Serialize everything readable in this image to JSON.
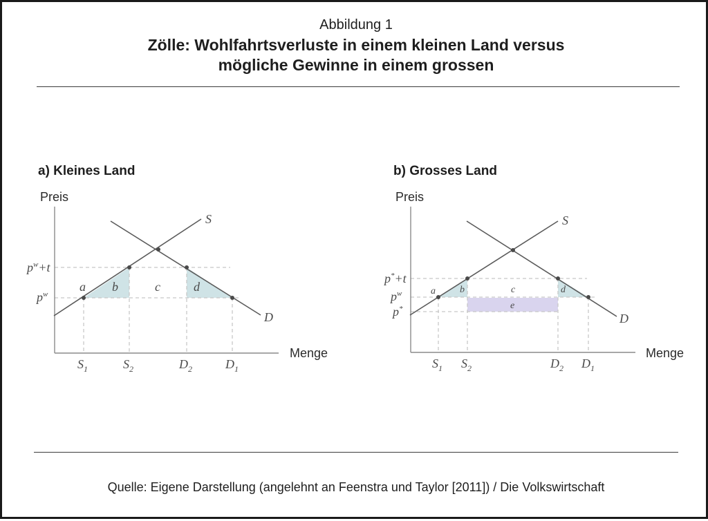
{
  "header": {
    "figure_label": "Abbildung 1",
    "title_line1": "Zölle: Wohlfahrtsverluste in einem kleinen Land versus",
    "title_line2": "mögliche Gewinne in einem grossen"
  },
  "colors": {
    "triangle_fill": "#cfe3e6",
    "rectangle_fill": "#d9d4ee",
    "line": "#5a5a5a",
    "guide": "#c8c8c8"
  },
  "panel_a": {
    "title": "a) Kleines Land",
    "y_axis_name": "Preis",
    "x_axis_name": "Menge",
    "supply_label": "S",
    "demand_label": "D",
    "price_labels": {
      "high": "p",
      "high_sup": "w",
      "high_tail": "+t",
      "low": "p",
      "low_sup": "w"
    },
    "quantity_labels": [
      {
        "letter": "S",
        "sub": "1"
      },
      {
        "letter": "S",
        "sub": "2"
      },
      {
        "letter": "D",
        "sub": "2"
      },
      {
        "letter": "D",
        "sub": "1"
      }
    ],
    "area_labels": {
      "a": "a",
      "b": "b",
      "c": "c",
      "d": "d"
    }
  },
  "panel_b": {
    "title": "b) Grosses Land",
    "y_axis_name": "Preis",
    "x_axis_name": "Menge",
    "supply_label": "S",
    "demand_label": "D",
    "price_labels": {
      "high": "p",
      "high_sup": "*",
      "high_tail": "+t",
      "mid": "p",
      "mid_sup": "w",
      "low": "p",
      "low_sup": "*"
    },
    "quantity_labels": [
      {
        "letter": "S",
        "sub": "1"
      },
      {
        "letter": "S",
        "sub": "2"
      },
      {
        "letter": "D",
        "sub": "2"
      },
      {
        "letter": "D",
        "sub": "1"
      }
    ],
    "area_labels": {
      "a": "a",
      "b": "b",
      "c": "c",
      "d": "d",
      "e": "e"
    }
  },
  "footer": {
    "source": "Quelle: Eigene Darstellung (angelehnt an Feenstra und Taylor [2011]) / Die Volkswirtschaft"
  }
}
